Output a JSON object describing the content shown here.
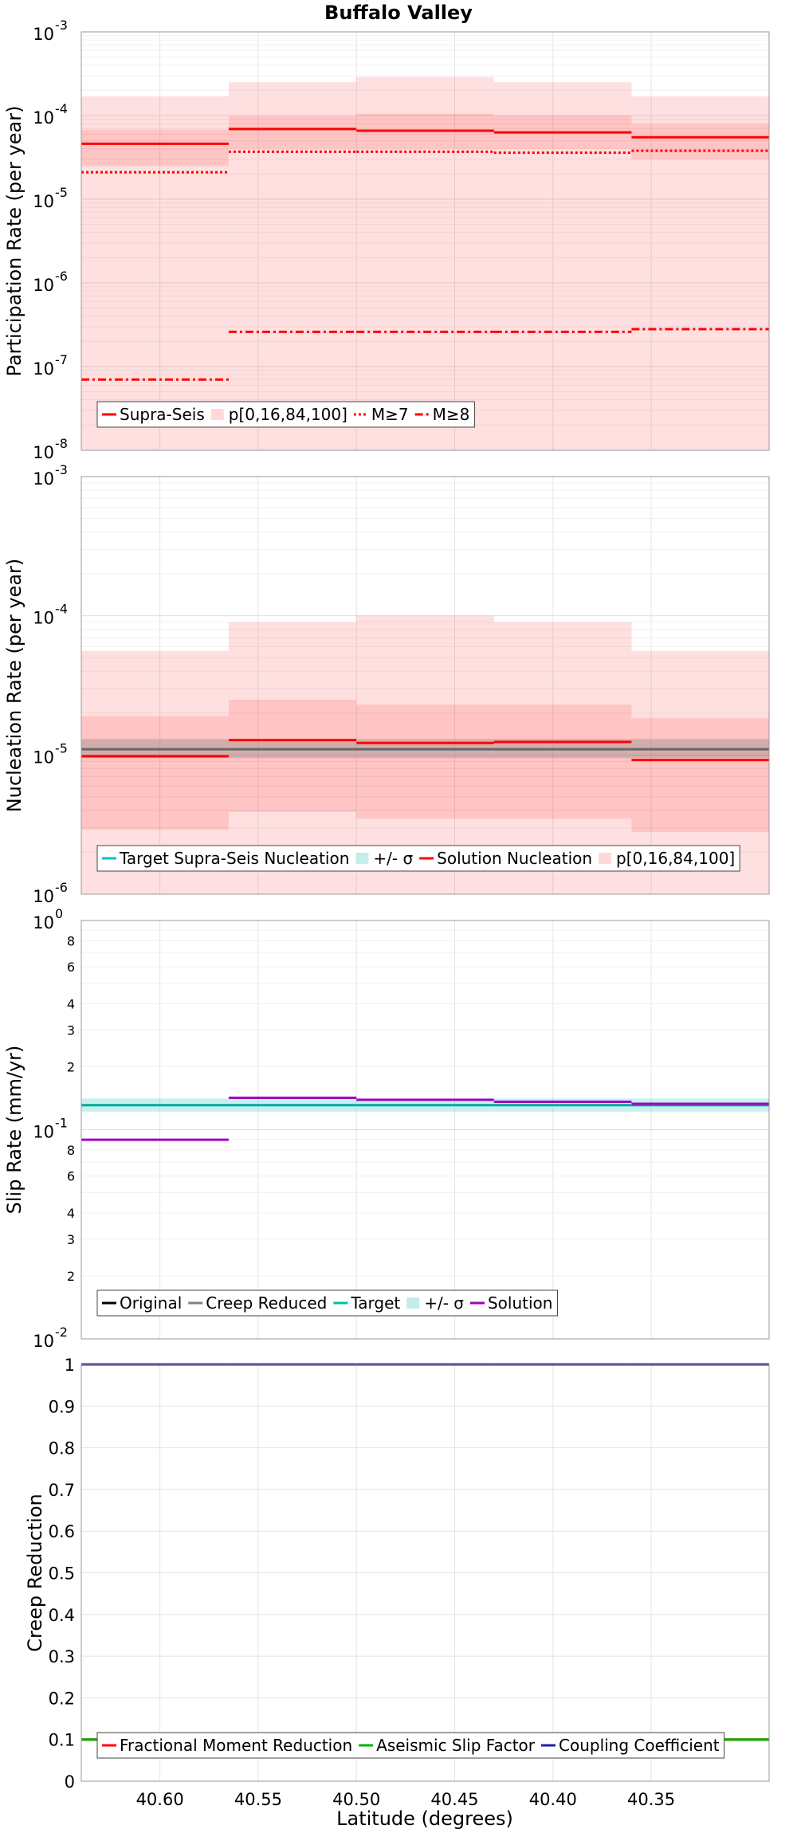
{
  "title": "Buffalo Valley",
  "xlabel": "Latitude (degrees)",
  "chart_data": [
    {
      "type": "line",
      "ylabel": "Participation Rate (per year)",
      "yscale": "log",
      "ylim": [
        1e-08,
        0.001
      ],
      "xlim": [
        40.64,
        40.29
      ],
      "xticks": [
        "40.60",
        "40.55",
        "40.50",
        "40.45",
        "40.40",
        "40.35"
      ],
      "yticks": [
        {
          "base": "10",
          "exp": "-8"
        },
        {
          "base": "10",
          "exp": "-7"
        },
        {
          "base": "10",
          "exp": "-6"
        },
        {
          "base": "10",
          "exp": "-5"
        },
        {
          "base": "10",
          "exp": "-4"
        },
        {
          "base": "10",
          "exp": "-3"
        }
      ],
      "segments": [
        40.64,
        40.565,
        40.5,
        40.43,
        40.36,
        40.29
      ],
      "bands": [
        {
          "name": "p[0,16,84,100]",
          "color": "#ff0000",
          "opacity": 0.12,
          "lo": [
            1e-08,
            1e-08,
            1e-08,
            1e-08,
            1e-08
          ],
          "hi": [
            0.00017,
            0.00025,
            0.00029,
            0.00025,
            0.00017
          ]
        },
        {
          "color": "#ff0000",
          "opacity": 0.12,
          "lo": [
            2.5e-05,
            4e-05,
            4e-05,
            4e-05,
            3e-05
          ],
          "hi": [
            6.8e-05,
            9.8e-05,
            0.000105,
            0.0001,
            8e-05
          ]
        }
      ],
      "series": [
        {
          "name": "Supra-Seis",
          "color": "#ff0000",
          "dash": "",
          "values": [
            4.6e-05,
            6.9e-05,
            6.6e-05,
            6.3e-05,
            5.5e-05
          ]
        },
        {
          "name": "M≥7",
          "color": "#ff0000",
          "dash": "3,3",
          "values": [
            2.1e-05,
            3.7e-05,
            3.7e-05,
            3.6e-05,
            3.8e-05
          ]
        },
        {
          "name": "M≥8",
          "color": "#ff0000",
          "dash": "10,4,3,4",
          "values": [
            7e-08,
            2.6e-07,
            2.6e-07,
            2.6e-07,
            2.8e-07
          ]
        }
      ],
      "legend": {
        "position": "bottom-left",
        "items": [
          {
            "label": "Supra-Seis",
            "kind": "line",
            "color": "#ff0000",
            "dash": ""
          },
          {
            "label": "p[0,16,84,100]",
            "kind": "box",
            "color": "#ffd9d9"
          },
          {
            "label": "M≥7",
            "kind": "line",
            "color": "#ff0000",
            "dash": "3,3"
          },
          {
            "label": "M≥8",
            "kind": "line",
            "color": "#ff0000",
            "dash": "10,4,3,4"
          }
        ]
      }
    },
    {
      "type": "line",
      "ylabel": "Nucleation Rate (per year)",
      "yscale": "log",
      "ylim": [
        1e-06,
        0.001
      ],
      "xlim": [
        40.64,
        40.29
      ],
      "xticks": [
        "40.60",
        "40.55",
        "40.50",
        "40.45",
        "40.40",
        "40.35"
      ],
      "yticks": [
        {
          "base": "10",
          "exp": "-6"
        },
        {
          "base": "10",
          "exp": "-5"
        },
        {
          "base": "10",
          "exp": "-4"
        },
        {
          "base": "10",
          "exp": "-3"
        }
      ],
      "segments": [
        40.64,
        40.565,
        40.5,
        40.43,
        40.36,
        40.29
      ],
      "bands": [
        {
          "name": "p[0,16,84,100]",
          "color": "#ff0000",
          "opacity": 0.12,
          "lo": [
            1e-06,
            1e-06,
            1e-06,
            1e-06,
            1e-06
          ],
          "hi": [
            5.6e-05,
            9e-05,
            0.0001,
            9e-05,
            5.6e-05
          ]
        },
        {
          "color": "#ff0000",
          "opacity": 0.12,
          "lo": [
            2.9e-06,
            3.9e-06,
            3.5e-06,
            3.5e-06,
            2.8e-06
          ],
          "hi": [
            1.9e-05,
            2.5e-05,
            2.3e-05,
            2.3e-05,
            1.85e-05
          ]
        },
        {
          "name": "+/- σ",
          "color": "#808080",
          "opacity": 0.35,
          "lo": [
            9.5e-06,
            9.5e-06,
            9.5e-06,
            9.5e-06,
            9.5e-06
          ],
          "hi": [
            1.3e-05,
            1.3e-05,
            1.3e-05,
            1.3e-05,
            1.3e-05
          ]
        }
      ],
      "series": [
        {
          "name": "Target Supra-Seis Nucleation",
          "color": "#666666",
          "dash": "",
          "values": [
            1.1e-05,
            1.1e-05,
            1.1e-05,
            1.1e-05,
            1.1e-05
          ]
        },
        {
          "name": "Solution Nucleation",
          "color": "#ff0000",
          "dash": "",
          "values": [
            9.8e-06,
            1.28e-05,
            1.22e-05,
            1.24e-05,
            9.2e-06
          ]
        }
      ],
      "legend": {
        "position": "bottom-left",
        "items": [
          {
            "label": "Target Supra-Seis Nucleation",
            "kind": "line",
            "color": "#00bfcf",
            "dash": ""
          },
          {
            "label": "+/- σ",
            "kind": "box",
            "color": "#c6ecec"
          },
          {
            "label": "Solution Nucleation",
            "kind": "line",
            "color": "#ff0000",
            "dash": ""
          },
          {
            "label": "p[0,16,84,100]",
            "kind": "box",
            "color": "#ffd9d9"
          }
        ]
      }
    },
    {
      "type": "line",
      "ylabel": "Slip Rate (mm/yr)",
      "yscale": "log",
      "ylim": [
        0.01,
        1
      ],
      "xlim": [
        40.64,
        40.29
      ],
      "xticks": [
        "40.60",
        "40.55",
        "40.50",
        "40.45",
        "40.40",
        "40.35"
      ],
      "yticks": [
        {
          "base": "10",
          "exp": "-2"
        },
        {
          "base": "10",
          "exp": "-1"
        },
        {
          "base": "10",
          "exp": "0"
        }
      ],
      "yminor": [
        2,
        3,
        4,
        6,
        8
      ],
      "segments": [
        40.64,
        40.565,
        40.5,
        40.43,
        40.36,
        40.29
      ],
      "bands": [
        {
          "name": "+/- σ",
          "color": "#00bfbf",
          "opacity": 0.22,
          "lo": [
            0.122,
            0.122,
            0.122,
            0.122,
            0.122
          ],
          "hi": [
            0.141,
            0.141,
            0.141,
            0.141,
            0.141
          ]
        }
      ],
      "series": [
        {
          "name": "Target",
          "color": "#00a89a",
          "dash": "",
          "values": [
            0.131,
            0.131,
            0.131,
            0.131,
            0.131
          ]
        },
        {
          "name": "Solution",
          "color": "#a000c0",
          "dash": "",
          "values": [
            0.0895,
            0.142,
            0.139,
            0.136,
            0.133
          ]
        }
      ],
      "legend": {
        "position": "bottom-left",
        "items": [
          {
            "label": "Original",
            "kind": "line",
            "color": "#000000",
            "dash": ""
          },
          {
            "label": "Creep Reduced",
            "kind": "line",
            "color": "#808080",
            "dash": ""
          },
          {
            "label": "Target",
            "kind": "line",
            "color": "#00bfa5",
            "dash": ""
          },
          {
            "label": "+/- σ",
            "kind": "box",
            "color": "#c6ecec"
          },
          {
            "label": "Solution",
            "kind": "line",
            "color": "#a000c0",
            "dash": ""
          }
        ]
      }
    },
    {
      "type": "line",
      "ylabel": "Creep Reduction",
      "yscale": "linear",
      "ylim": [
        0,
        1
      ],
      "xlim": [
        40.64,
        40.29
      ],
      "xticks": [
        "40.60",
        "40.55",
        "40.50",
        "40.45",
        "40.40",
        "40.35"
      ],
      "yticks": [
        {
          "base": "0",
          "exp": ""
        },
        {
          "base": "0.1",
          "exp": ""
        },
        {
          "base": "0.2",
          "exp": ""
        },
        {
          "base": "0.3",
          "exp": ""
        },
        {
          "base": "0.4",
          "exp": ""
        },
        {
          "base": "0.5",
          "exp": ""
        },
        {
          "base": "0.6",
          "exp": ""
        },
        {
          "base": "0.7",
          "exp": ""
        },
        {
          "base": "0.8",
          "exp": ""
        },
        {
          "base": "0.9",
          "exp": ""
        },
        {
          "base": "1",
          "exp": ""
        }
      ],
      "segments": [
        40.64,
        40.565,
        40.5,
        40.43,
        40.36,
        40.29
      ],
      "bands": [],
      "series": [
        {
          "name": "Fractional Moment Reduction",
          "color": "#ff0000",
          "dash": "",
          "values": [
            0.1,
            0.1,
            0.1,
            0.1,
            0.1
          ]
        },
        {
          "name": "Aseismic Slip Factor",
          "color": "#00b000",
          "dash": "",
          "values": [
            0.1,
            0.1,
            0.1,
            0.1,
            0.1
          ]
        },
        {
          "name": "Coupling Coefficient",
          "color": "#2020a0",
          "dash": "",
          "values": [
            1,
            1,
            1,
            1,
            1
          ]
        }
      ],
      "legend": {
        "position": "bottom-left",
        "items": [
          {
            "label": "Fractional Moment Reduction",
            "kind": "line",
            "color": "#ff0000",
            "dash": ""
          },
          {
            "label": "Aseismic Slip Factor",
            "kind": "line",
            "color": "#00b000",
            "dash": ""
          },
          {
            "label": "Coupling Coefficient",
            "kind": "line",
            "color": "#2020a0",
            "dash": ""
          }
        ]
      }
    }
  ]
}
